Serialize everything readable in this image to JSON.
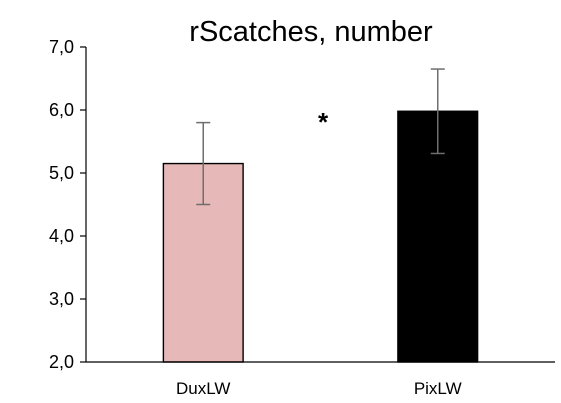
{
  "chart_data": {
    "type": "bar",
    "title": "rScatches, number",
    "xlabel": "",
    "ylabel": "",
    "ylim": [
      2.0,
      7.0
    ],
    "ytick_values": [
      2.0,
      3.0,
      4.0,
      5.0,
      6.0,
      7.0
    ],
    "ytick_labels": [
      "2,0",
      "3,0",
      "4,0",
      "5,0",
      "6,0",
      "7,0"
    ],
    "categories": [
      "DuxLW",
      "PixLW"
    ],
    "values": [
      5.15,
      5.98
    ],
    "error": [
      0.65,
      0.67
    ],
    "bar_colors": [
      "#e6b8b7",
      "#000000"
    ],
    "bar_edge_color": "#000000",
    "grid": false,
    "legend": "none",
    "annotations": [
      {
        "text": "*",
        "between": [
          "DuxLW",
          "PixLW"
        ]
      }
    ]
  }
}
